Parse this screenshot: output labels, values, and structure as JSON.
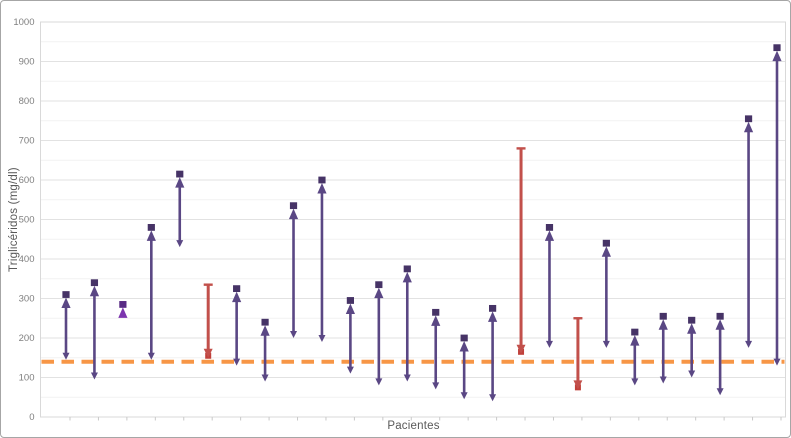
{
  "window": {
    "background": "#ffffff",
    "frame_border_color": "#a6a6a6"
  },
  "chart_data": {
    "type": "scatter",
    "subtype": "vertical paired-change arrows (start value to end value per patient)",
    "title": "",
    "xlabel": "Pacientes",
    "ylabel": "Triglicéridos (mg/dl)",
    "ylim": [
      0,
      1000
    ],
    "yticks": [
      0,
      100,
      200,
      300,
      400,
      500,
      600,
      700,
      800,
      900,
      1000
    ],
    "minor_ytick_step": 50,
    "x_categories_count": 26,
    "x_tick_labels": [],
    "grid": "major and minor horizontal gridlines",
    "legend": "none",
    "reference_line": {
      "value": 140,
      "color": "#f79646",
      "style": "dashed",
      "thickness": 4
    },
    "styles": {
      "increase_arrow_color": "#5a4784",
      "increase_marker_color": "#463366",
      "increase_alt_arrow_color": "#7c35ae",
      "increase_alt_marker_color": "#582a84",
      "decrease_arrow_color": "#c2504b",
      "decrease_marker_color": "#c0403a",
      "major_grid_color": "#e2e2e2",
      "minor_grid_color": "#f2f2f2",
      "plot_border_color": "#d9d9d9",
      "tick_color": "#c9c9c9",
      "tick_label_color": "#7f7f7f",
      "axis_title_color": "#595959"
    },
    "points": [
      {
        "patient": 1,
        "start": 150,
        "end": 310,
        "change": "increase"
      },
      {
        "patient": 2,
        "start": 100,
        "end": 340,
        "change": "increase"
      },
      {
        "patient": 3,
        "start": 255,
        "end": 285,
        "change": "increase_alt"
      },
      {
        "patient": 4,
        "start": 150,
        "end": 480,
        "change": "increase"
      },
      {
        "patient": 5,
        "start": 435,
        "end": 615,
        "change": "increase"
      },
      {
        "patient": 6,
        "start": 335,
        "end": 150,
        "change": "decrease"
      },
      {
        "patient": 7,
        "start": 135,
        "end": 325,
        "change": "increase"
      },
      {
        "patient": 8,
        "start": 95,
        "end": 240,
        "change": "increase"
      },
      {
        "patient": 9,
        "start": 205,
        "end": 535,
        "change": "increase"
      },
      {
        "patient": 10,
        "start": 195,
        "end": 600,
        "change": "increase"
      },
      {
        "patient": 11,
        "start": 115,
        "end": 295,
        "change": "increase"
      },
      {
        "patient": 12,
        "start": 85,
        "end": 335,
        "change": "increase"
      },
      {
        "patient": 13,
        "start": 95,
        "end": 375,
        "change": "increase"
      },
      {
        "patient": 14,
        "start": 75,
        "end": 265,
        "change": "increase"
      },
      {
        "patient": 15,
        "start": 50,
        "end": 200,
        "change": "increase"
      },
      {
        "patient": 16,
        "start": 45,
        "end": 275,
        "change": "increase"
      },
      {
        "patient": 17,
        "start": 680,
        "end": 160,
        "change": "decrease"
      },
      {
        "patient": 18,
        "start": 180,
        "end": 480,
        "change": "increase"
      },
      {
        "patient": 19,
        "start": 250,
        "end": 70,
        "change": "decrease"
      },
      {
        "patient": 20,
        "start": 180,
        "end": 440,
        "change": "increase"
      },
      {
        "patient": 21,
        "start": 85,
        "end": 215,
        "change": "increase"
      },
      {
        "patient": 22,
        "start": 90,
        "end": 255,
        "change": "increase"
      },
      {
        "patient": 23,
        "start": 105,
        "end": 245,
        "change": "increase"
      },
      {
        "patient": 24,
        "start": 60,
        "end": 255,
        "change": "increase"
      },
      {
        "patient": 25,
        "start": 180,
        "end": 755,
        "change": "increase"
      },
      {
        "patient": 26,
        "start": 135,
        "end": 935,
        "change": "increase"
      }
    ]
  }
}
